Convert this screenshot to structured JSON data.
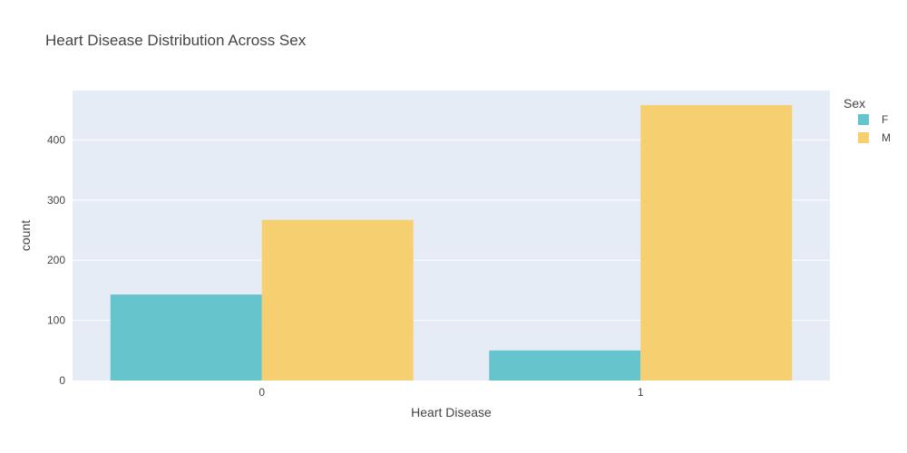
{
  "chart_data": {
    "type": "bar",
    "title": "Heart Disease Distribution Across Sex",
    "xlabel": "Heart Disease",
    "ylabel": "count",
    "categories": [
      "0",
      "1"
    ],
    "series": [
      {
        "name": "F",
        "values": [
          143,
          50
        ],
        "color": "#66c5cc"
      },
      {
        "name": "M",
        "values": [
          267,
          458
        ],
        "color": "#f6cf71"
      }
    ],
    "ylim": [
      0,
      482
    ],
    "yticks": [
      0,
      100,
      200,
      300,
      400
    ],
    "legend": {
      "title": "Sex",
      "placement": "top-right"
    },
    "grid": true,
    "barmode": "group",
    "plot_background": "#e5ecf6",
    "gridline_color": "#ffffff"
  }
}
